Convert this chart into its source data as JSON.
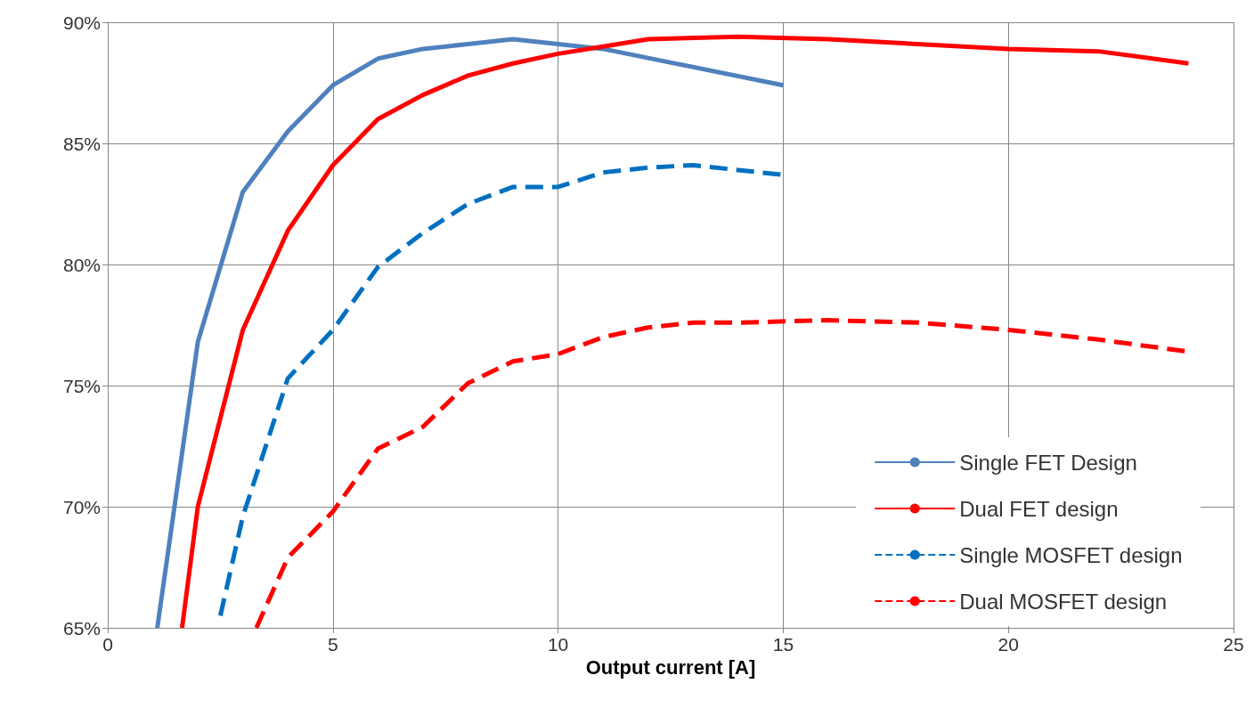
{
  "chart_data": {
    "type": "line",
    "xlabel": "Output current [A]",
    "xlim": [
      0,
      25
    ],
    "xticks": [
      0,
      5,
      10,
      15,
      20,
      25
    ],
    "ylim": [
      65,
      90
    ],
    "yticks": [
      {
        "value": 65,
        "label": "65%"
      },
      {
        "value": 70,
        "label": "70%"
      },
      {
        "value": 75,
        "label": "75%"
      },
      {
        "value": 80,
        "label": "80%"
      },
      {
        "value": 85,
        "label": "85%"
      },
      {
        "value": 90,
        "label": "90%"
      }
    ],
    "grid": true,
    "legend": "bottom right",
    "marker": "none",
    "series": [
      {
        "name": "Single FET Design",
        "color": "#4f81bd",
        "line_style": "solid",
        "x": [
          1.1,
          2,
          3,
          4,
          5,
          6,
          7,
          8,
          9,
          10,
          11,
          15
        ],
        "values": [
          65,
          76.8,
          83.0,
          85.5,
          87.4,
          88.5,
          88.9,
          89.1,
          89.3,
          89.1,
          88.9,
          87.4
        ]
      },
      {
        "name": "Dual FET design",
        "color": "#ff0000",
        "line_style": "solid",
        "x": [
          1.65,
          2,
          3,
          4,
          5,
          6,
          7,
          8,
          9,
          10,
          11,
          12,
          14,
          16,
          20,
          22,
          24
        ],
        "values": [
          65,
          70.0,
          77.3,
          81.4,
          84.1,
          86.0,
          87.0,
          87.8,
          88.3,
          88.7,
          89.0,
          89.3,
          89.4,
          89.3,
          88.9,
          88.8,
          88.3
        ]
      },
      {
        "name": "Single MOSFET design",
        "color": "#0070c0",
        "line_style": "dashed",
        "x": [
          2.5,
          3,
          4,
          5,
          6,
          7,
          8,
          9,
          10,
          11,
          12,
          13,
          14,
          15
        ],
        "values": [
          65.5,
          69.6,
          75.3,
          77.3,
          79.9,
          81.3,
          82.5,
          83.2,
          83.2,
          83.8,
          84.0,
          84.1,
          83.9,
          83.7
        ]
      },
      {
        "name": "Dual MOSFET design",
        "color": "#ff0000",
        "line_style": "dashed",
        "x": [
          3.3,
          4,
          5,
          6,
          7,
          8,
          9,
          10,
          11,
          12,
          13,
          14,
          16,
          18,
          20,
          22,
          24
        ],
        "values": [
          65,
          67.9,
          69.8,
          72.4,
          73.3,
          75.1,
          76.0,
          76.3,
          77.0,
          77.4,
          77.6,
          77.6,
          77.7,
          77.6,
          77.3,
          76.9,
          76.4
        ]
      }
    ]
  }
}
